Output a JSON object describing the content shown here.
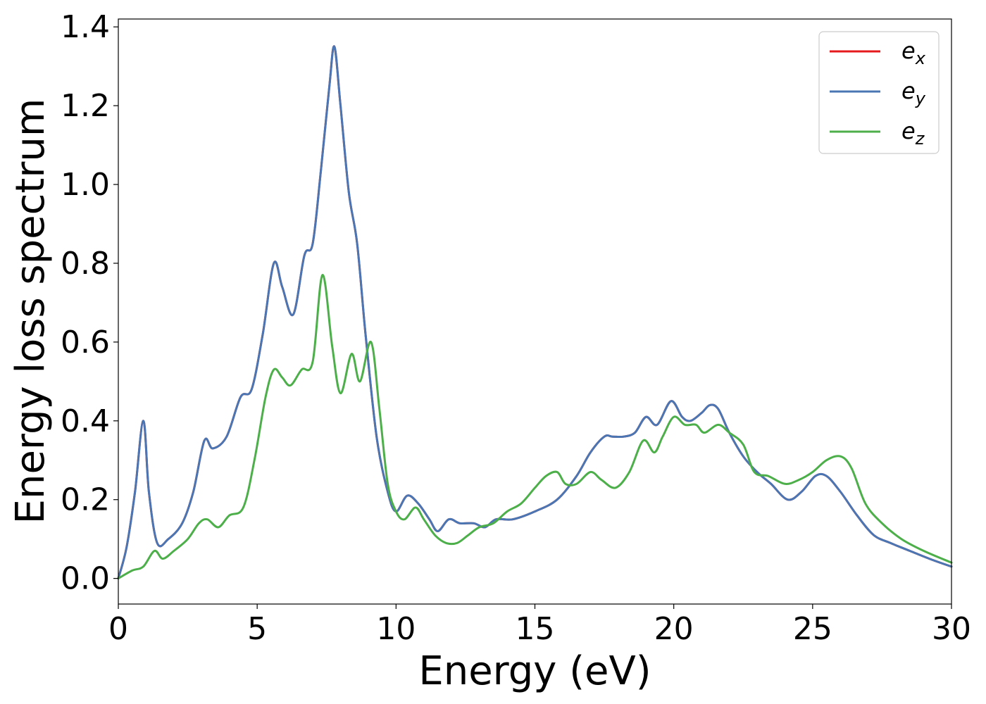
{
  "chart_data": {
    "type": "line",
    "title": "",
    "xlabel": "Energy (eV)",
    "ylabel": "Energy loss spectrum",
    "xlim": [
      0,
      30
    ],
    "ylim": [
      -0.065,
      1.42
    ],
    "xticks": [
      0,
      5,
      10,
      15,
      20,
      25,
      30
    ],
    "xtick_labels": [
      "0",
      "5",
      "10",
      "15",
      "20",
      "25",
      "30"
    ],
    "yticks": [
      0.0,
      0.2,
      0.4,
      0.6,
      0.8,
      1.0,
      1.2,
      1.4
    ],
    "ytick_labels": [
      "0.0",
      "0.2",
      "0.4",
      "0.6",
      "0.8",
      "1.0",
      "1.2",
      "1.4"
    ],
    "grid": false,
    "legend_position": "top-right",
    "series": [
      {
        "name": "e_x",
        "legend_base": "e",
        "legend_sub": "x",
        "color": "#e41a1c",
        "points": [
          [
            0,
            0
          ],
          [
            0.3,
            0.08
          ],
          [
            0.6,
            0.22
          ],
          [
            0.9,
            0.4
          ],
          [
            1.1,
            0.22
          ],
          [
            1.4,
            0.09
          ],
          [
            1.8,
            0.1
          ],
          [
            2.3,
            0.14
          ],
          [
            2.7,
            0.22
          ],
          [
            3.1,
            0.35
          ],
          [
            3.4,
            0.33
          ],
          [
            3.9,
            0.36
          ],
          [
            4.4,
            0.46
          ],
          [
            4.8,
            0.48
          ],
          [
            5.2,
            0.62
          ],
          [
            5.6,
            0.8
          ],
          [
            5.9,
            0.74
          ],
          [
            6.3,
            0.67
          ],
          [
            6.7,
            0.82
          ],
          [
            7.0,
            0.85
          ],
          [
            7.3,
            1.04
          ],
          [
            7.6,
            1.25
          ],
          [
            7.78,
            1.35
          ],
          [
            8.0,
            1.2
          ],
          [
            8.3,
            0.98
          ],
          [
            8.6,
            0.85
          ],
          [
            8.9,
            0.62
          ],
          [
            9.3,
            0.36
          ],
          [
            9.7,
            0.22
          ],
          [
            10.0,
            0.17
          ],
          [
            10.4,
            0.21
          ],
          [
            10.8,
            0.19
          ],
          [
            11.2,
            0.15
          ],
          [
            11.5,
            0.12
          ],
          [
            11.9,
            0.15
          ],
          [
            12.3,
            0.14
          ],
          [
            12.8,
            0.14
          ],
          [
            13.2,
            0.13
          ],
          [
            13.6,
            0.15
          ],
          [
            14.2,
            0.15
          ],
          [
            15.0,
            0.17
          ],
          [
            15.8,
            0.2
          ],
          [
            16.5,
            0.26
          ],
          [
            17.0,
            0.32
          ],
          [
            17.5,
            0.36
          ],
          [
            17.8,
            0.36
          ],
          [
            18.2,
            0.36
          ],
          [
            18.6,
            0.37
          ],
          [
            19.0,
            0.41
          ],
          [
            19.4,
            0.39
          ],
          [
            19.9,
            0.45
          ],
          [
            20.3,
            0.41
          ],
          [
            20.6,
            0.4
          ],
          [
            21.0,
            0.42
          ],
          [
            21.3,
            0.44
          ],
          [
            21.6,
            0.43
          ],
          [
            22.0,
            0.37
          ],
          [
            22.5,
            0.31
          ],
          [
            23.0,
            0.27
          ],
          [
            23.5,
            0.24
          ],
          [
            24.1,
            0.2
          ],
          [
            24.6,
            0.22
          ],
          [
            25.1,
            0.26
          ],
          [
            25.5,
            0.26
          ],
          [
            26.0,
            0.22
          ],
          [
            26.6,
            0.16
          ],
          [
            27.2,
            0.11
          ],
          [
            27.8,
            0.09
          ],
          [
            28.5,
            0.07
          ],
          [
            29.2,
            0.05
          ],
          [
            30.0,
            0.03
          ]
        ]
      },
      {
        "name": "e_y",
        "legend_base": "e",
        "legend_sub": "y",
        "color": "#4a77b4",
        "points": [
          [
            0,
            0
          ],
          [
            0.3,
            0.08
          ],
          [
            0.6,
            0.22
          ],
          [
            0.9,
            0.4
          ],
          [
            1.1,
            0.22
          ],
          [
            1.4,
            0.09
          ],
          [
            1.8,
            0.1
          ],
          [
            2.3,
            0.14
          ],
          [
            2.7,
            0.22
          ],
          [
            3.1,
            0.35
          ],
          [
            3.4,
            0.33
          ],
          [
            3.9,
            0.36
          ],
          [
            4.4,
            0.46
          ],
          [
            4.8,
            0.48
          ],
          [
            5.2,
            0.62
          ],
          [
            5.6,
            0.8
          ],
          [
            5.9,
            0.74
          ],
          [
            6.3,
            0.67
          ],
          [
            6.7,
            0.82
          ],
          [
            7.0,
            0.85
          ],
          [
            7.3,
            1.04
          ],
          [
            7.6,
            1.25
          ],
          [
            7.78,
            1.35
          ],
          [
            8.0,
            1.2
          ],
          [
            8.3,
            0.98
          ],
          [
            8.6,
            0.85
          ],
          [
            8.9,
            0.62
          ],
          [
            9.3,
            0.36
          ],
          [
            9.7,
            0.22
          ],
          [
            10.0,
            0.17
          ],
          [
            10.4,
            0.21
          ],
          [
            10.8,
            0.19
          ],
          [
            11.2,
            0.15
          ],
          [
            11.5,
            0.12
          ],
          [
            11.9,
            0.15
          ],
          [
            12.3,
            0.14
          ],
          [
            12.8,
            0.14
          ],
          [
            13.2,
            0.13
          ],
          [
            13.6,
            0.15
          ],
          [
            14.2,
            0.15
          ],
          [
            15.0,
            0.17
          ],
          [
            15.8,
            0.2
          ],
          [
            16.5,
            0.26
          ],
          [
            17.0,
            0.32
          ],
          [
            17.5,
            0.36
          ],
          [
            17.8,
            0.36
          ],
          [
            18.2,
            0.36
          ],
          [
            18.6,
            0.37
          ],
          [
            19.0,
            0.41
          ],
          [
            19.4,
            0.39
          ],
          [
            19.9,
            0.45
          ],
          [
            20.3,
            0.41
          ],
          [
            20.6,
            0.4
          ],
          [
            21.0,
            0.42
          ],
          [
            21.3,
            0.44
          ],
          [
            21.6,
            0.43
          ],
          [
            22.0,
            0.37
          ],
          [
            22.5,
            0.31
          ],
          [
            23.0,
            0.27
          ],
          [
            23.5,
            0.24
          ],
          [
            24.1,
            0.2
          ],
          [
            24.6,
            0.22
          ],
          [
            25.1,
            0.26
          ],
          [
            25.5,
            0.26
          ],
          [
            26.0,
            0.22
          ],
          [
            26.6,
            0.16
          ],
          [
            27.2,
            0.11
          ],
          [
            27.8,
            0.09
          ],
          [
            28.5,
            0.07
          ],
          [
            29.2,
            0.05
          ],
          [
            30.0,
            0.03
          ]
        ]
      },
      {
        "name": "e_z",
        "legend_base": "e",
        "legend_sub": "z",
        "color": "#4daf4a",
        "points": [
          [
            0,
            0
          ],
          [
            0.5,
            0.02
          ],
          [
            0.9,
            0.03
          ],
          [
            1.3,
            0.07
          ],
          [
            1.6,
            0.05
          ],
          [
            2.0,
            0.07
          ],
          [
            2.5,
            0.1
          ],
          [
            2.9,
            0.14
          ],
          [
            3.2,
            0.15
          ],
          [
            3.6,
            0.13
          ],
          [
            4.0,
            0.16
          ],
          [
            4.5,
            0.18
          ],
          [
            4.9,
            0.3
          ],
          [
            5.3,
            0.46
          ],
          [
            5.6,
            0.53
          ],
          [
            5.9,
            0.51
          ],
          [
            6.2,
            0.49
          ],
          [
            6.6,
            0.53
          ],
          [
            7.0,
            0.55
          ],
          [
            7.35,
            0.77
          ],
          [
            7.7,
            0.59
          ],
          [
            8.0,
            0.47
          ],
          [
            8.4,
            0.57
          ],
          [
            8.7,
            0.5
          ],
          [
            9.1,
            0.6
          ],
          [
            9.4,
            0.43
          ],
          [
            9.7,
            0.24
          ],
          [
            10.0,
            0.17
          ],
          [
            10.3,
            0.15
          ],
          [
            10.7,
            0.18
          ],
          [
            11.0,
            0.15
          ],
          [
            11.4,
            0.11
          ],
          [
            11.8,
            0.09
          ],
          [
            12.2,
            0.09
          ],
          [
            12.6,
            0.11
          ],
          [
            13.0,
            0.13
          ],
          [
            13.5,
            0.14
          ],
          [
            14.0,
            0.17
          ],
          [
            14.5,
            0.19
          ],
          [
            15.0,
            0.23
          ],
          [
            15.4,
            0.26
          ],
          [
            15.8,
            0.27
          ],
          [
            16.1,
            0.24
          ],
          [
            16.5,
            0.24
          ],
          [
            17.0,
            0.27
          ],
          [
            17.4,
            0.25
          ],
          [
            17.9,
            0.23
          ],
          [
            18.4,
            0.27
          ],
          [
            18.9,
            0.35
          ],
          [
            19.3,
            0.32
          ],
          [
            19.6,
            0.36
          ],
          [
            20.0,
            0.41
          ],
          [
            20.4,
            0.39
          ],
          [
            20.8,
            0.39
          ],
          [
            21.1,
            0.37
          ],
          [
            21.6,
            0.39
          ],
          [
            22.0,
            0.37
          ],
          [
            22.5,
            0.34
          ],
          [
            22.9,
            0.27
          ],
          [
            23.4,
            0.26
          ],
          [
            24.0,
            0.24
          ],
          [
            24.5,
            0.25
          ],
          [
            25.0,
            0.27
          ],
          [
            25.5,
            0.3
          ],
          [
            26.0,
            0.31
          ],
          [
            26.4,
            0.28
          ],
          [
            26.9,
            0.19
          ],
          [
            27.5,
            0.14
          ],
          [
            28.2,
            0.1
          ],
          [
            29.0,
            0.07
          ],
          [
            30.0,
            0.04
          ]
        ]
      }
    ]
  }
}
